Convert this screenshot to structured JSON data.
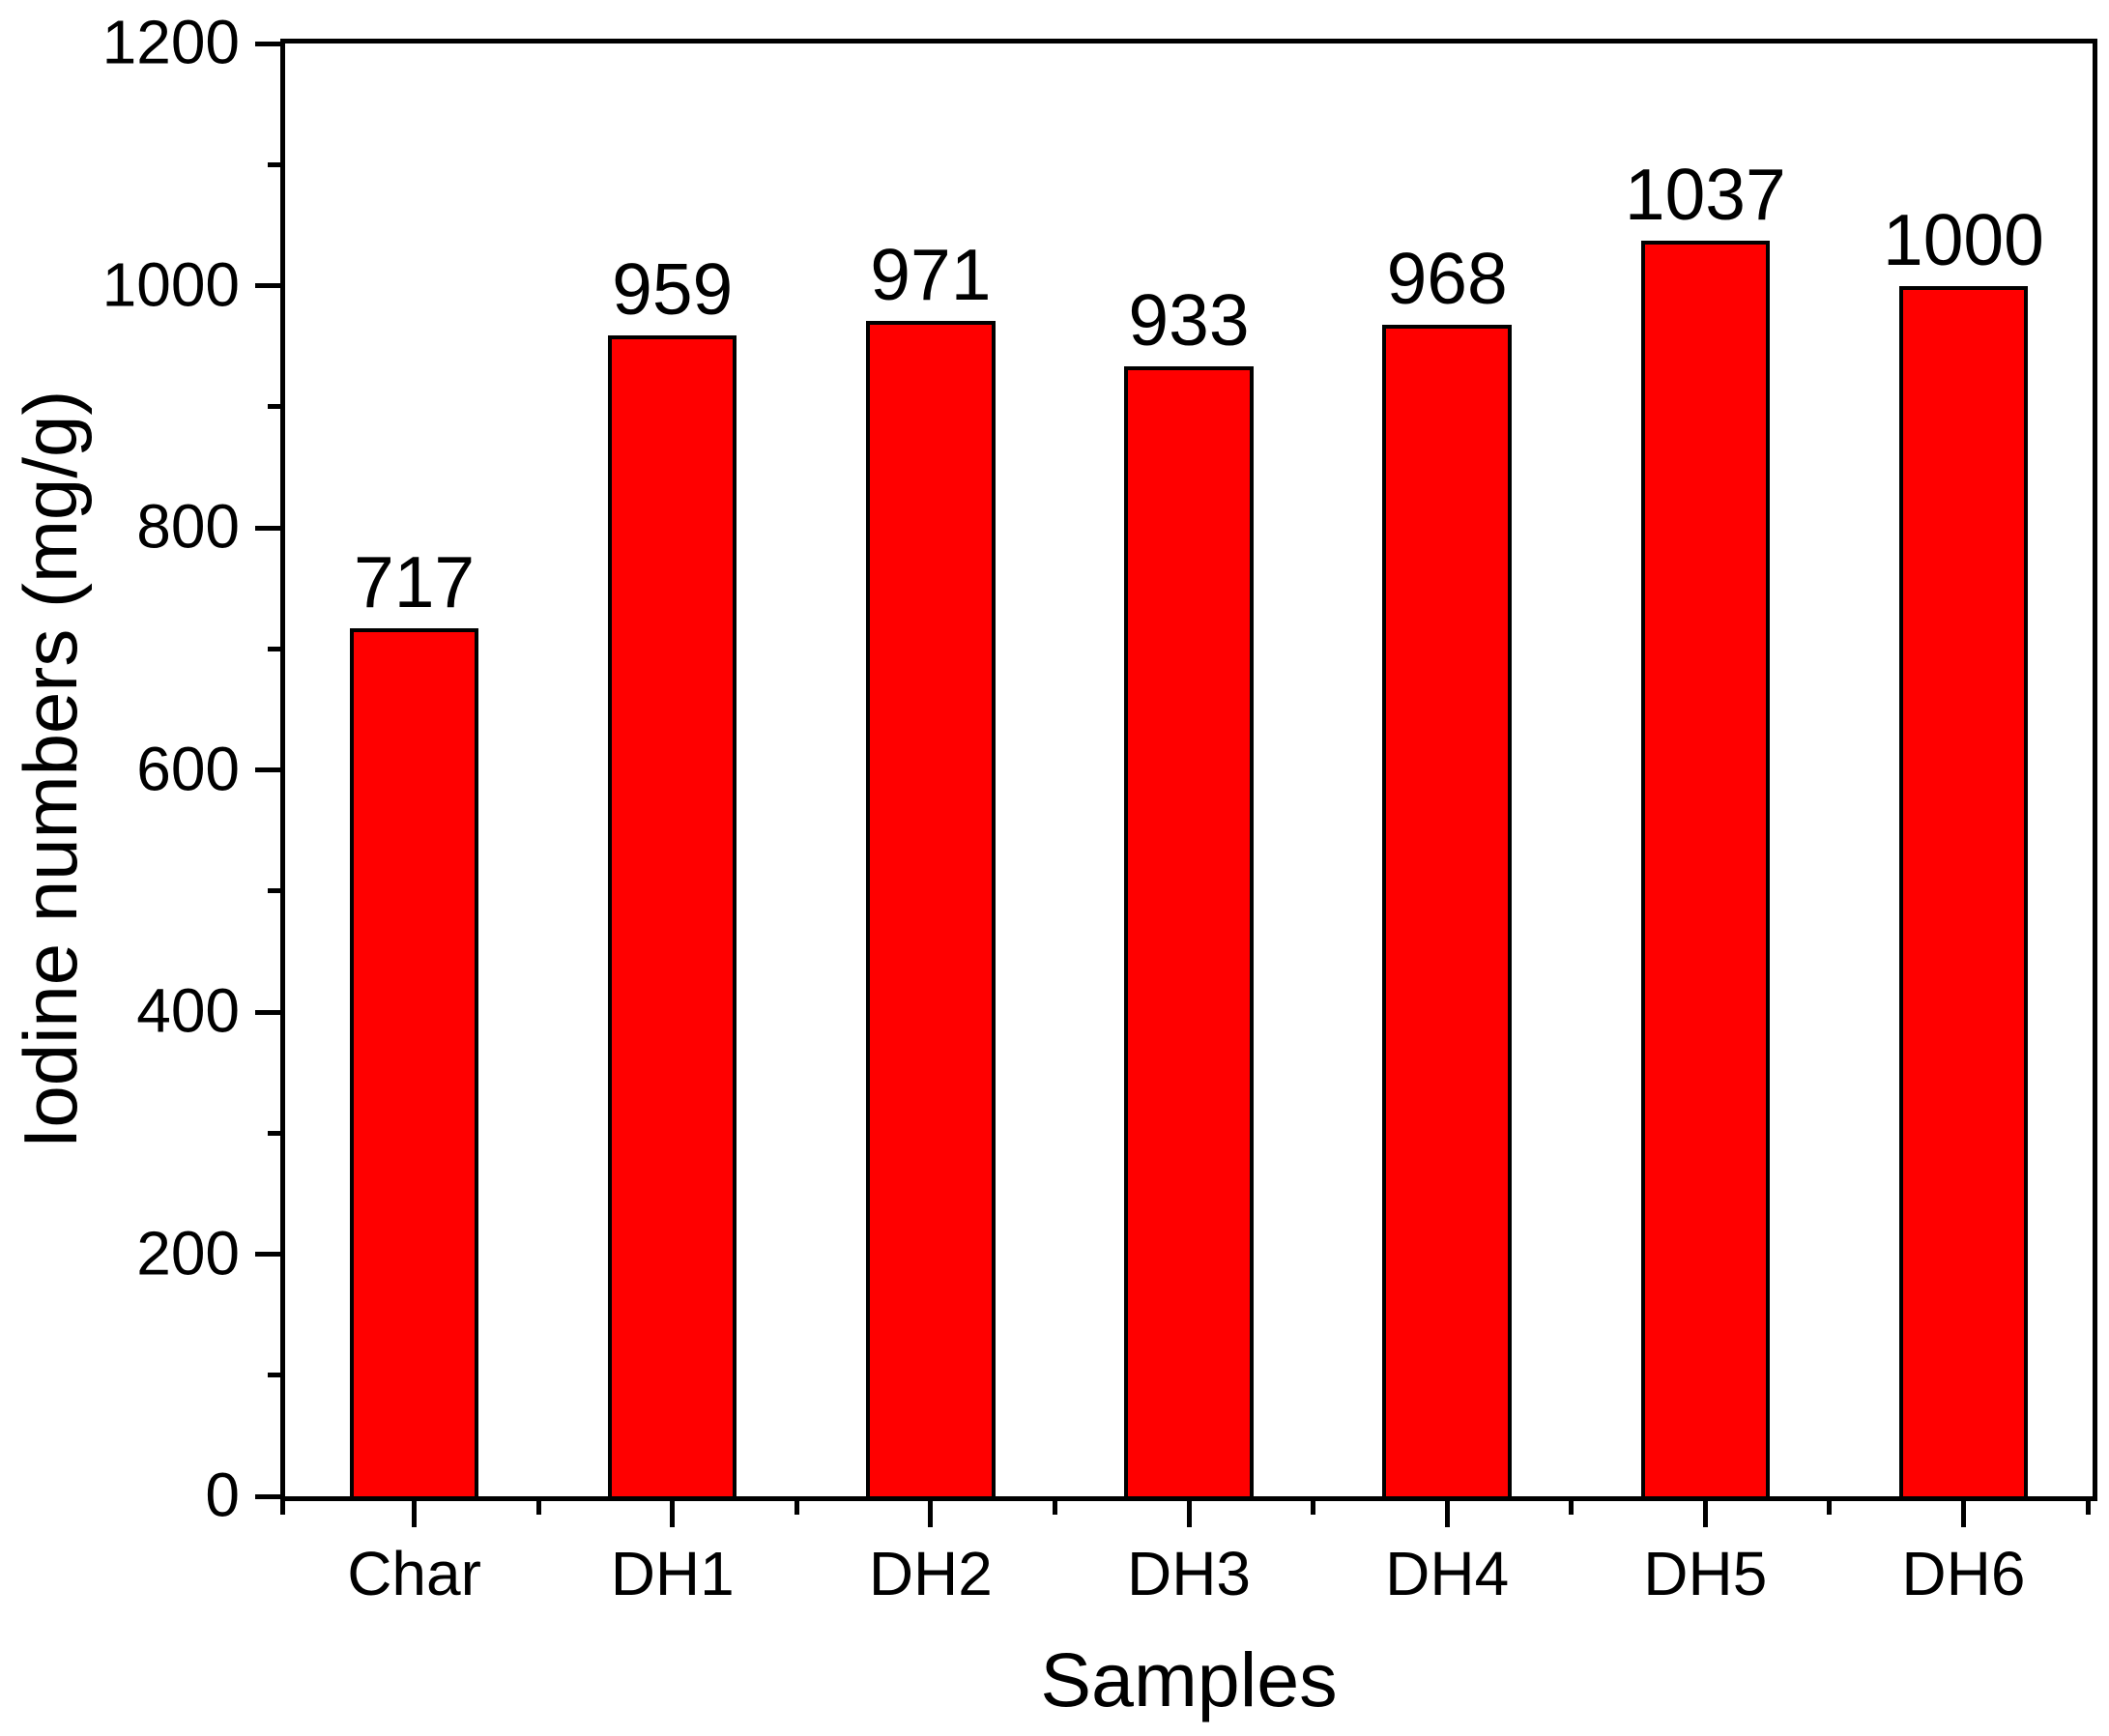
{
  "chart_data": {
    "type": "bar",
    "title": "",
    "xlabel": "Samples",
    "ylabel": "Iodine numbers (mg/g)",
    "categories": [
      "Char",
      "DH1",
      "DH2",
      "DH3",
      "DH4",
      "DH5",
      "DH6"
    ],
    "values": [
      717,
      959,
      971,
      933,
      968,
      1037,
      1000
    ],
    "bar_value_labels": [
      "717",
      "959",
      "971",
      "933",
      "968",
      "1037",
      "1000"
    ],
    "ylim": [
      0,
      1200
    ],
    "y_major_ticks": [
      0,
      200,
      400,
      600,
      800,
      1000,
      1200
    ],
    "y_major_tick_labels": [
      "0",
      "200",
      "400",
      "600",
      "800",
      "1000",
      "1200"
    ],
    "y_minor_ticks": [
      100,
      300,
      500,
      700,
      900,
      1100
    ],
    "grid": false,
    "legend_position": "none",
    "frame": "full-box",
    "bar_fill_color": "#FF0000",
    "bar_edge_color": "#000000",
    "axis_color": "#000000",
    "text_color": "#000000",
    "background_color": "#FFFFFF"
  }
}
